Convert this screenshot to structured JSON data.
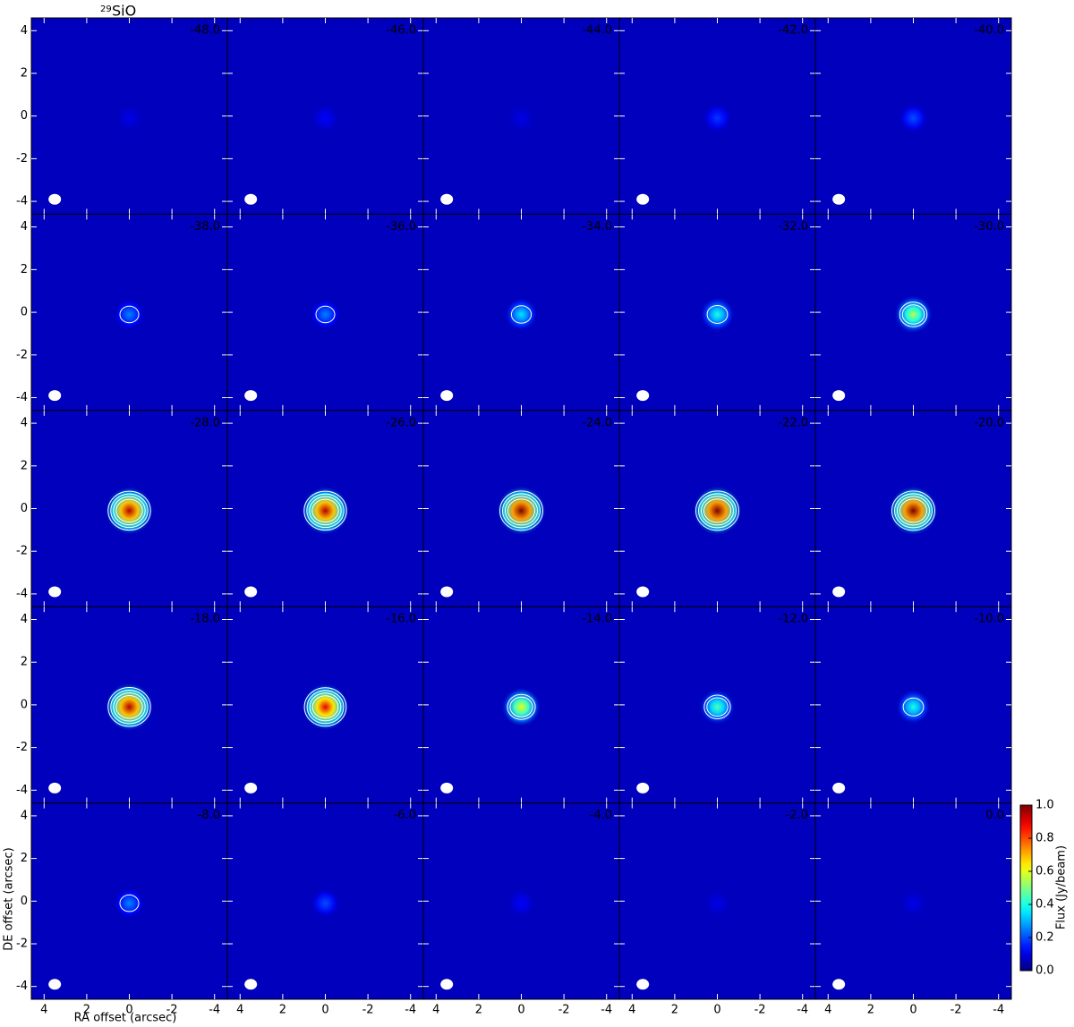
{
  "chart_data": {
    "type": "heatmap",
    "title_superscript": "29",
    "title": "SiO",
    "xlabel": "RA offset (arcsec)",
    "ylabel": "DE offset (arcsec)",
    "colorbar_label": "Flux (Jy/beam)",
    "channels": [
      "-48.0",
      "-46.0",
      "-44.0",
      "-42.0",
      "-40.0",
      "-38.0",
      "-36.0",
      "-34.0",
      "-32.0",
      "-30.0",
      "-28.0",
      "-26.0",
      "-24.0",
      "-22.0",
      "-20.0",
      "-18.0",
      "-16.0",
      "-14.0",
      "-12.0",
      "-10.0",
      "-8.0",
      "-6.0",
      "-4.0",
      "-2.0",
      "0.0"
    ],
    "peak_flux": [
      0.1,
      0.12,
      0.1,
      0.18,
      0.2,
      0.25,
      0.25,
      0.35,
      0.4,
      0.55,
      0.95,
      0.95,
      1.0,
      1.0,
      1.0,
      0.95,
      0.9,
      0.6,
      0.45,
      0.4,
      0.25,
      0.2,
      0.12,
      0.1,
      0.1
    ],
    "xlim": [
      4.6,
      -4.6
    ],
    "ylim": [
      -4.6,
      4.6
    ],
    "xticks": [
      4,
      2,
      0,
      -2,
      -4
    ],
    "yticks": [
      -4,
      -2,
      0,
      2,
      4
    ],
    "clim": [
      0,
      1
    ],
    "cticks": [
      {
        "value": 0,
        "label": "0.0"
      },
      {
        "value": 0.2,
        "label": "0.2"
      },
      {
        "value": 0.4,
        "label": "0.4"
      },
      {
        "value": 0.6,
        "label": "0.6"
      },
      {
        "value": 0.8,
        "label": "0.8"
      },
      {
        "value": 1,
        "label": "1.0"
      }
    ],
    "colormap": "jet",
    "grid": false
  }
}
